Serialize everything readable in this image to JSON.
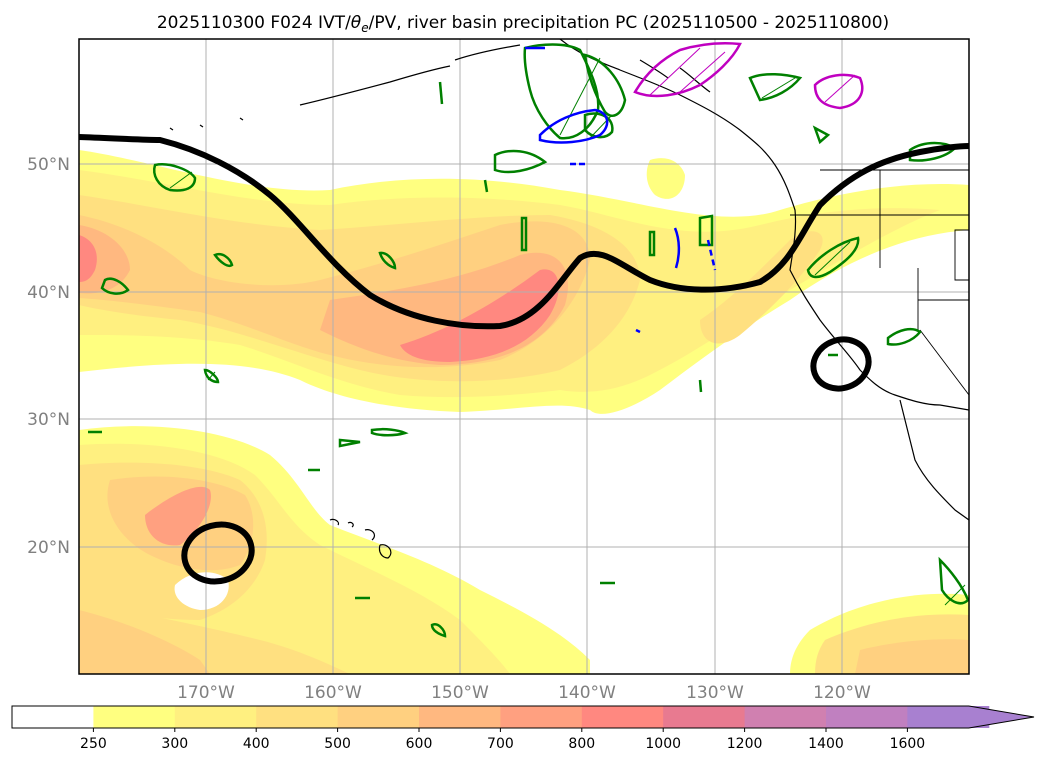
{
  "title_main": "2025110300 F024 IVT/",
  "title_theta": "θ",
  "title_sub": "e",
  "title_rest": "/PV, river basin precipitation PC (2025110500 - 2025110800)",
  "lat_labels": [
    "50°N",
    "40°N",
    "30°N",
    "20°N"
  ],
  "lon_labels": [
    "170°W",
    "160°W",
    "150°W",
    "140°W",
    "130°W",
    "120°W"
  ],
  "colorbar": {
    "levels": [
      "250",
      "300",
      "400",
      "500",
      "600",
      "700",
      "800",
      "1000",
      "1200",
      "1400",
      "1600"
    ],
    "colors": [
      "#ffffff",
      "#ffff80",
      "#fff080",
      "#ffe080",
      "#ffd080",
      "#ffb880",
      "#ffa080",
      "#ff8880",
      "#e87a90",
      "#d080b0",
      "#c080c0",
      "#a880d0"
    ]
  },
  "colors": {
    "ivt_light": "#ffff80",
    "ivt_medium": "#fff080",
    "ivt_orange": "#ffd080",
    "ivt_salmon": "#ffa080",
    "ivt_red": "#ff8880",
    "pc_green": "#008000",
    "pc_blue": "#0000ff",
    "pc_magenta": "#c000c0",
    "pv_line": "#000000"
  }
}
